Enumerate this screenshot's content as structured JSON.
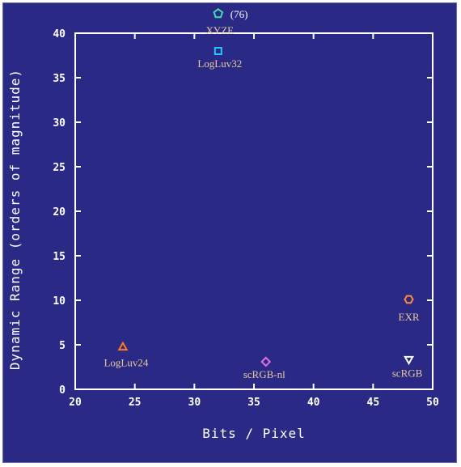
{
  "chart_data": {
    "type": "scatter",
    "title": "",
    "xlabel": "Bits / Pixel",
    "ylabel": "Dynamic Range (orders of magnitude)",
    "xlim": [
      20,
      50
    ],
    "ylim": [
      0,
      40
    ],
    "xticks": [
      20,
      25,
      30,
      35,
      40,
      45,
      50
    ],
    "yticks": [
      0,
      5,
      10,
      15,
      20,
      25,
      30,
      35,
      40
    ],
    "grid": false,
    "points": [
      {
        "label": "XYZE",
        "x": 32,
        "y": 42.2,
        "marker": "pentagon",
        "color": "#3fe0b0",
        "note": "(76)"
      },
      {
        "label": "LogLuv32",
        "x": 32,
        "y": 38,
        "marker": "square",
        "color": "#22c8ff",
        "note": ""
      },
      {
        "label": "EXR",
        "x": 48,
        "y": 10.1,
        "marker": "hexagon",
        "color": "#ff8a3a",
        "note": ""
      },
      {
        "label": "LogLuv24",
        "x": 24,
        "y": 4.7,
        "marker": "triangle-up",
        "color": "#ff7a26",
        "note": ""
      },
      {
        "label": "scRGB-nl",
        "x": 36,
        "y": 3.1,
        "marker": "diamond",
        "color": "#e070e0",
        "note": ""
      },
      {
        "label": "scRGB",
        "x": 48,
        "y": 3.4,
        "marker": "triangle-down",
        "color": "#ffffff",
        "note": ""
      }
    ],
    "colors": {
      "background": "#2a2a86",
      "axis": "#ffffff",
      "label_text": "#e8c89a"
    }
  }
}
